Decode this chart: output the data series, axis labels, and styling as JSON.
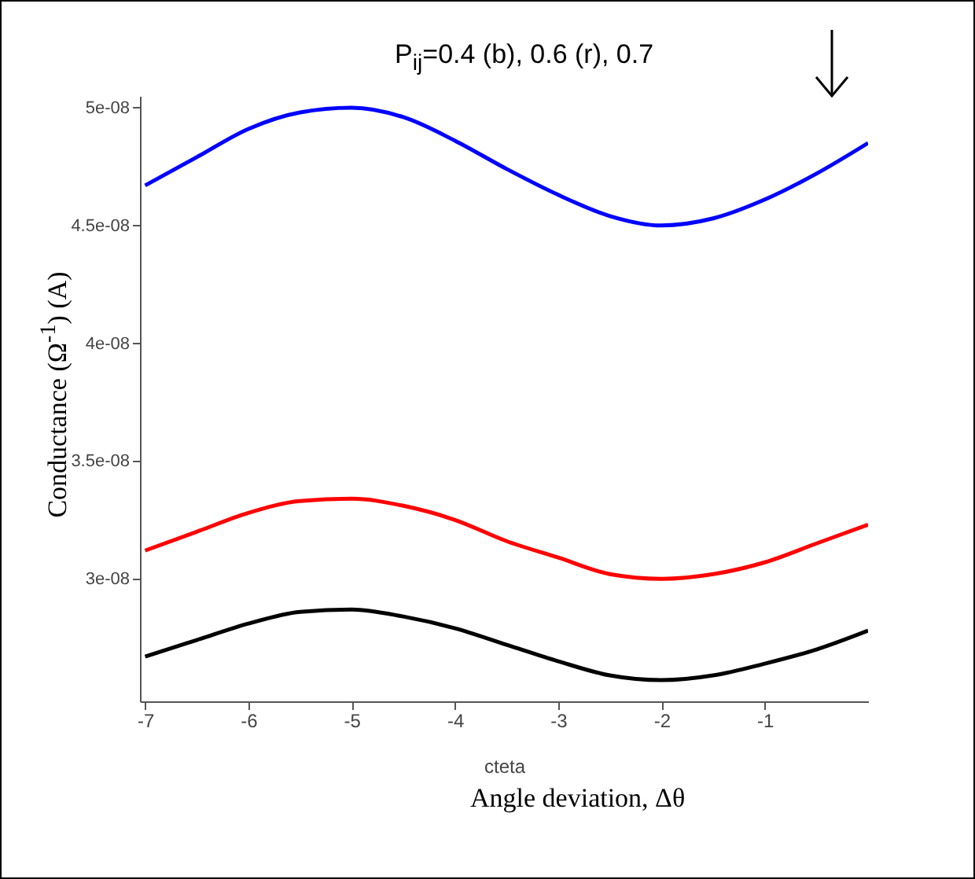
{
  "chart_data": {
    "type": "line",
    "title": "P$_{ij}$=0.4 (b), 0.6 (r), 0.7",
    "xlabel": "cteta",
    "ylabel": "Conductance (Ω$^{-1}$)  (A)",
    "annotations": [
      "Angle deviation, Δθ"
    ],
    "x": [
      -7,
      -6.5,
      -6,
      -5.5,
      -5,
      -4.5,
      -4,
      -3.5,
      -3,
      -2.5,
      -2,
      -1.5,
      -1,
      -0.5,
      0
    ],
    "series": [
      {
        "color": "#0000ff",
        "values": [
          4.67e-08,
          4.79e-08,
          4.91e-08,
          4.98e-08,
          5e-08,
          4.96e-08,
          4.86e-08,
          4.74e-08,
          4.63e-08,
          4.54e-08,
          4.5e-08,
          4.53e-08,
          4.61e-08,
          4.72e-08,
          4.85e-08
        ]
      },
      {
        "color": "#ff0000",
        "values": [
          3.12e-08,
          3.2e-08,
          3.28e-08,
          3.33e-08,
          3.34e-08,
          3.31e-08,
          3.25e-08,
          3.16e-08,
          3.09e-08,
          3.02e-08,
          3e-08,
          3.02e-08,
          3.07e-08,
          3.15e-08,
          3.23e-08
        ]
      },
      {
        "color": "#000000",
        "values": [
          2.67e-08,
          2.74e-08,
          2.81e-08,
          2.86e-08,
          2.87e-08,
          2.84e-08,
          2.79e-08,
          2.72e-08,
          2.65e-08,
          2.59e-08,
          2.57e-08,
          2.59e-08,
          2.64e-08,
          2.7e-08,
          2.78e-08
        ]
      }
    ],
    "xlim": [
      -7.05,
      0
    ],
    "ylim": [
      2.48e-08,
      5.05e-08
    ],
    "xticks": [
      -7,
      -6,
      -5,
      -4,
      -3,
      -2,
      -1
    ],
    "yticks": [
      {
        "value": 3e-08,
        "label": "3e-08"
      },
      {
        "value": 3.5e-08,
        "label": "3.5e-08"
      },
      {
        "value": 4e-08,
        "label": "4e-08"
      },
      {
        "value": 4.5e-08,
        "label": "4.5e-08"
      },
      {
        "value": 5e-08,
        "label": "5e-08"
      }
    ],
    "grid": false,
    "marker": "none",
    "line_style": "solid"
  }
}
